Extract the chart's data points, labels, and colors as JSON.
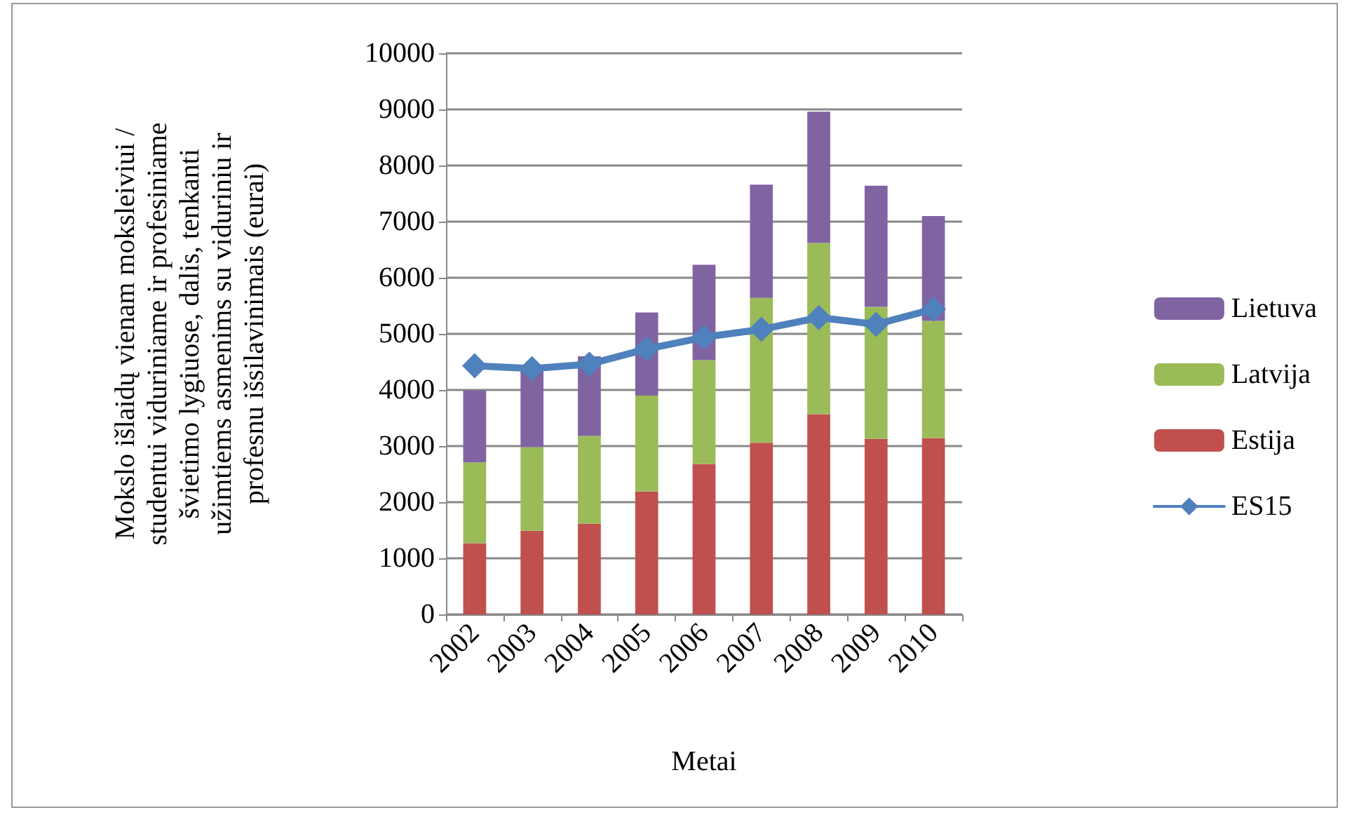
{
  "chart_data": {
    "type": "bar",
    "stacked": true,
    "ylabel": "Mokslo išlaidų vienam moksleiviui /\nstudentui viduriniame ir profesiniame\nšvietimo lygiuose, dalis, tenkanti\nužimtiems asmenims su viduriniu ir\nprofesnu išsilavinimais (eurai)",
    "xlabel": "Metai",
    "categories": [
      "2002",
      "2003",
      "2004",
      "2005",
      "2006",
      "2007",
      "2008",
      "2009",
      "2010"
    ],
    "series": [
      {
        "name": "Estija",
        "color": "#c0504d",
        "values": [
          1270,
          1490,
          1620,
          2190,
          2680,
          3060,
          3570,
          3130,
          3140
        ]
      },
      {
        "name": "Latvija",
        "color": "#9bbb59",
        "values": [
          1440,
          1490,
          1560,
          1710,
          1850,
          2580,
          3050,
          2350,
          2090
        ]
      },
      {
        "name": "Lietuva",
        "color": "#8064a2",
        "values": [
          1280,
          1410,
          1420,
          1480,
          1700,
          2020,
          2340,
          2160,
          1870
        ]
      },
      {
        "name": "ES15",
        "type": "line",
        "color": "#4f81bd",
        "marker": "diamond",
        "values": [
          4430,
          4380,
          4460,
          4730,
          4940,
          5080,
          5290,
          5170,
          5440
        ]
      }
    ],
    "ylim": [
      0,
      10000
    ],
    "yticks": [
      0,
      1000,
      2000,
      3000,
      4000,
      5000,
      6000,
      7000,
      8000,
      9000,
      10000
    ],
    "grid": "y",
    "legend": "right"
  }
}
